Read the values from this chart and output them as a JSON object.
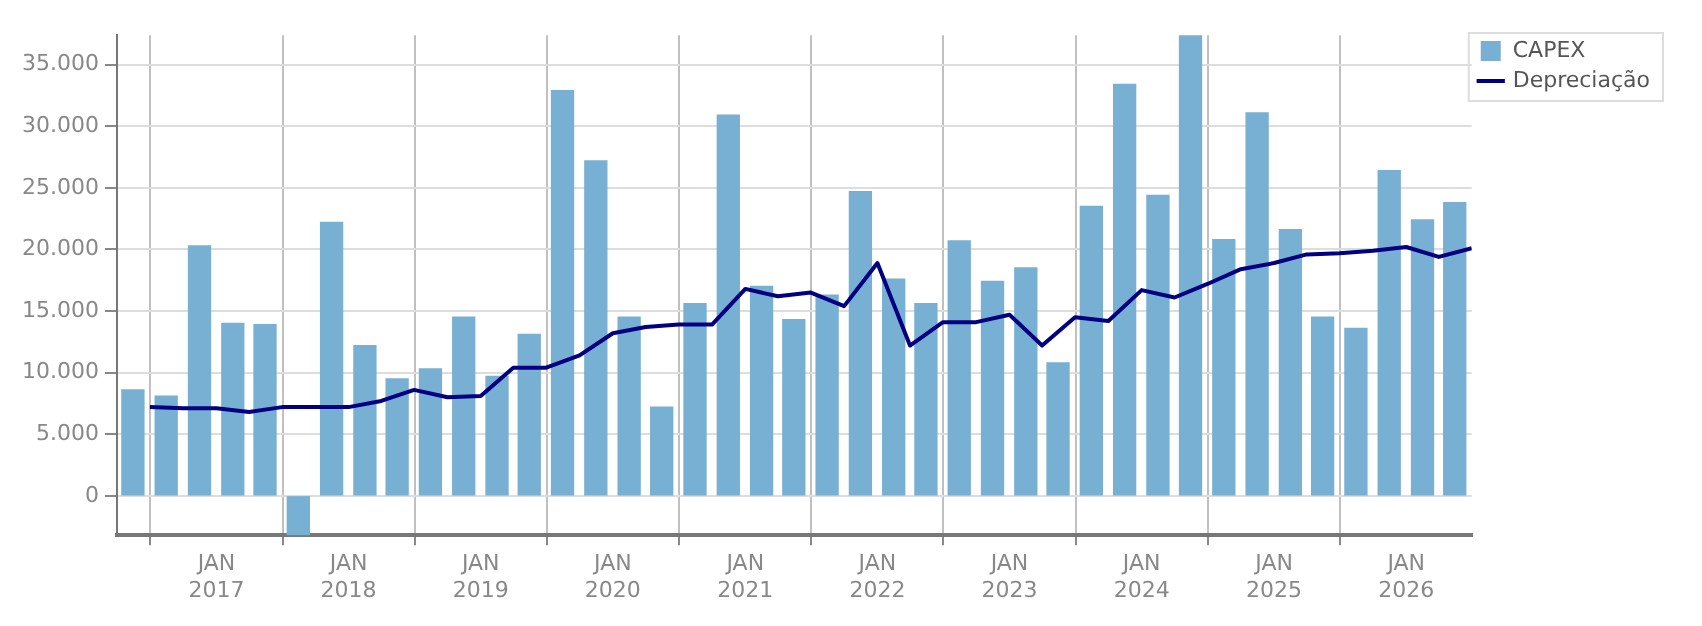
{
  "chart_data": {
    "type": "bar",
    "series": [
      {
        "name": "CAPEX",
        "color": "#77b0d2",
        "x": [
          "2016-05-15",
          "2016-08-15",
          "2016-11-15",
          "2017-02-15",
          "2017-05-15",
          "2017-08-15",
          "2017-11-15",
          "2018-02-15",
          "2018-05-15",
          "2018-08-15",
          "2018-11-15",
          "2019-02-15",
          "2019-05-15",
          "2019-08-15",
          "2019-11-15",
          "2020-02-15",
          "2020-05-15",
          "2020-08-15",
          "2020-11-15",
          "2021-02-15",
          "2021-05-15",
          "2021-08-15",
          "2021-11-15",
          "2022-02-15",
          "2022-05-15",
          "2022-08-15",
          "2022-11-15",
          "2023-02-15",
          "2023-05-15",
          "2023-08-15",
          "2023-11-15",
          "2024-02-15",
          "2024-05-15",
          "2024-08-15",
          "2024-11-15",
          "2025-02-15",
          "2025-05-15",
          "2025-08-15",
          "2025-11-15",
          "2026-02-15",
          "2026-05-15"
        ],
        "values": [
          8600,
          8100,
          20300,
          14000,
          13900,
          -3200,
          22200,
          12200,
          9500,
          10300,
          14500,
          9700,
          13100,
          32900,
          27200,
          14500,
          7200,
          15600,
          30900,
          17000,
          14300,
          16300,
          24700,
          17600,
          15600,
          20700,
          17400,
          18500,
          10800,
          23500,
          33400,
          24400,
          37400,
          20800,
          31100,
          21600,
          14500,
          13600,
          26400,
          22400,
          23800
        ]
      },
      {
        "name": "Depreciação",
        "type": "line",
        "color": "#000080",
        "x": [
          "2016-07-01",
          "2016-10-01",
          "2017-01-01",
          "2017-04-01",
          "2017-07-01",
          "2017-10-01",
          "2018-01-01",
          "2018-04-01",
          "2018-07-01",
          "2018-10-01",
          "2019-01-01",
          "2019-04-01",
          "2019-07-01",
          "2019-10-01",
          "2020-01-01",
          "2020-04-01",
          "2020-07-01",
          "2020-10-01",
          "2021-01-01",
          "2021-04-01",
          "2021-07-01",
          "2021-10-01",
          "2022-01-01",
          "2022-04-01",
          "2022-07-01",
          "2022-10-01",
          "2023-01-01",
          "2023-04-01",
          "2023-07-01",
          "2023-10-01",
          "2024-01-01",
          "2024-04-01",
          "2024-07-01",
          "2024-10-01",
          "2025-01-01",
          "2025-04-01",
          "2025-07-01",
          "2025-10-01",
          "2026-01-01",
          "2026-04-01",
          "2026-07-01"
        ],
        "values": [
          7200,
          7100,
          7100,
          6800,
          7200,
          7200,
          7200,
          7700,
          8600,
          8000,
          8100,
          10400,
          10400,
          11400,
          13200,
          13700,
          13900,
          13900,
          16800,
          16200,
          16500,
          15400,
          18900,
          12200,
          14100,
          14100,
          14700,
          12200,
          14500,
          14200,
          16700,
          16100,
          17200,
          18400,
          18900,
          19600,
          19700,
          19900,
          20200,
          19400,
          20100
        ]
      }
    ],
    "xlim": [
      "2016-04-01",
      "2026-07-01"
    ],
    "xticks": [
      {
        "value": "2017-01-01",
        "label": "JAN 2017"
      },
      {
        "value": "2018-01-01",
        "label": "JAN 2018"
      },
      {
        "value": "2019-01-01",
        "label": "JAN 2019"
      },
      {
        "value": "2020-01-01",
        "label": "JAN 2020"
      },
      {
        "value": "2021-01-01",
        "label": "JAN 2021"
      },
      {
        "value": "2022-01-01",
        "label": "JAN 2022"
      },
      {
        "value": "2023-01-01",
        "label": "JAN 2023"
      },
      {
        "value": "2024-01-01",
        "label": "JAN 2024"
      },
      {
        "value": "2025-01-01",
        "label": "JAN 2025"
      },
      {
        "value": "2026-01-01",
        "label": "JAN 2026"
      }
    ],
    "ylim": [
      -3200,
      37400
    ],
    "yticks": [
      {
        "value": 0,
        "label": "0"
      },
      {
        "value": 5000,
        "label": "5.000"
      },
      {
        "value": 10000,
        "label": "10.000"
      },
      {
        "value": 15000,
        "label": "15.000"
      },
      {
        "value": 20000,
        "label": "20.000"
      },
      {
        "value": 25000,
        "label": "25.000"
      },
      {
        "value": 30000,
        "label": "30.000"
      },
      {
        "value": 35000,
        "label": "35.000"
      }
    ],
    "grid": true,
    "legend": "top right"
  }
}
